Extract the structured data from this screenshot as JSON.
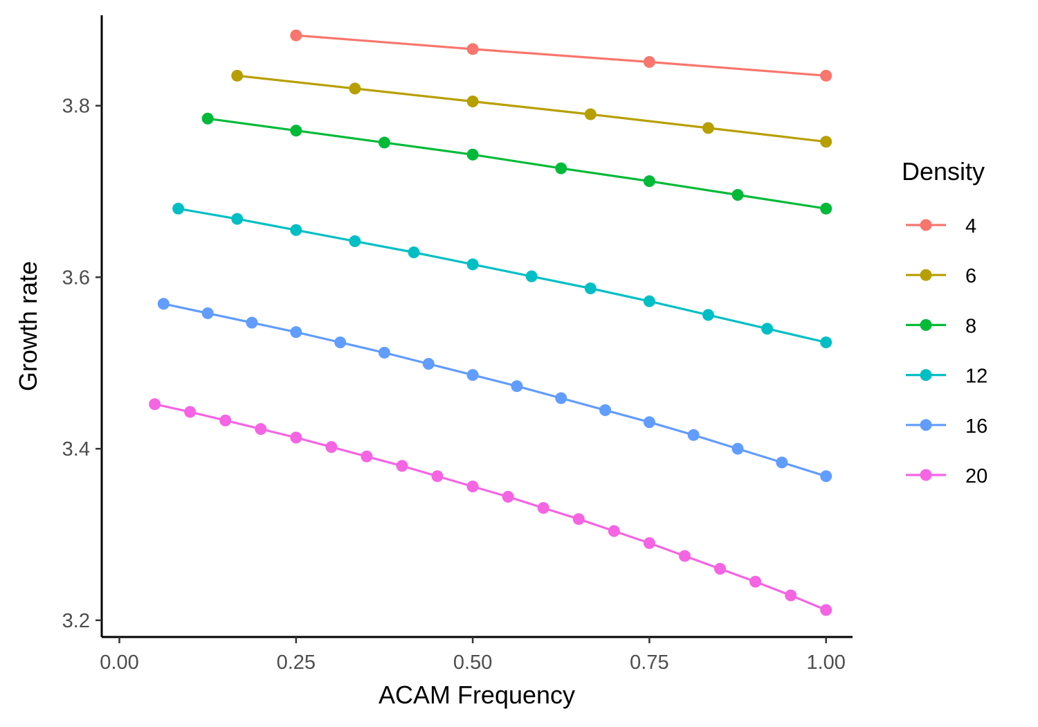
{
  "chart_data": {
    "type": "line",
    "title": "",
    "xlabel": "ACAM Frequency",
    "ylabel": "Growth rate",
    "xlim": [
      -0.025,
      1.0375
    ],
    "ylim": [
      3.1805,
      3.9055
    ],
    "xticks": [
      0.0,
      0.25,
      0.5,
      0.75,
      1.0
    ],
    "xtick_labels": [
      "0.00",
      "0.25",
      "0.50",
      "0.75",
      "1.00"
    ],
    "yticks": [
      3.2,
      3.4,
      3.6,
      3.8
    ],
    "ytick_labels": [
      "3.2",
      "3.4",
      "3.6",
      "3.8"
    ],
    "grid": false,
    "legend": {
      "title": "Density",
      "position": "right"
    },
    "series": [
      {
        "name": "4",
        "color": "#F8766D",
        "x": [
          0.25,
          0.5,
          0.75,
          1.0
        ],
        "y": [
          3.882,
          3.866,
          3.851,
          3.835
        ]
      },
      {
        "name": "6",
        "color": "#B79F00",
        "x": [
          0.1667,
          0.3333,
          0.5,
          0.6667,
          0.8333,
          1.0
        ],
        "y": [
          3.835,
          3.82,
          3.805,
          3.79,
          3.774,
          3.758
        ]
      },
      {
        "name": "8",
        "color": "#00BA38",
        "x": [
          0.125,
          0.25,
          0.375,
          0.5,
          0.625,
          0.75,
          0.875,
          1.0
        ],
        "y": [
          3.785,
          3.771,
          3.757,
          3.743,
          3.727,
          3.712,
          3.696,
          3.68
        ]
      },
      {
        "name": "12",
        "color": "#00BFC4",
        "x": [
          0.0833,
          0.1667,
          0.25,
          0.3333,
          0.4167,
          0.5,
          0.5833,
          0.6667,
          0.75,
          0.8333,
          0.9167,
          1.0
        ],
        "y": [
          3.68,
          3.668,
          3.655,
          3.642,
          3.629,
          3.615,
          3.601,
          3.587,
          3.572,
          3.556,
          3.54,
          3.524
        ]
      },
      {
        "name": "16",
        "color": "#619CFF",
        "x": [
          0.0625,
          0.125,
          0.1875,
          0.25,
          0.3125,
          0.375,
          0.4375,
          0.5,
          0.5625,
          0.625,
          0.6875,
          0.75,
          0.8125,
          0.875,
          0.9375,
          1.0
        ],
        "y": [
          3.569,
          3.558,
          3.547,
          3.536,
          3.524,
          3.512,
          3.499,
          3.486,
          3.473,
          3.459,
          3.445,
          3.431,
          3.416,
          3.4,
          3.384,
          3.368
        ]
      },
      {
        "name": "20",
        "color": "#F564E3",
        "x": [
          0.05,
          0.1,
          0.15,
          0.2,
          0.25,
          0.3,
          0.35,
          0.4,
          0.45,
          0.5,
          0.55,
          0.6,
          0.65,
          0.7,
          0.75,
          0.8,
          0.85,
          0.9,
          0.95,
          1.0
        ],
        "y": [
          3.452,
          3.443,
          3.433,
          3.423,
          3.413,
          3.402,
          3.391,
          3.38,
          3.368,
          3.356,
          3.344,
          3.331,
          3.318,
          3.304,
          3.29,
          3.275,
          3.26,
          3.245,
          3.229,
          3.212
        ]
      }
    ]
  }
}
